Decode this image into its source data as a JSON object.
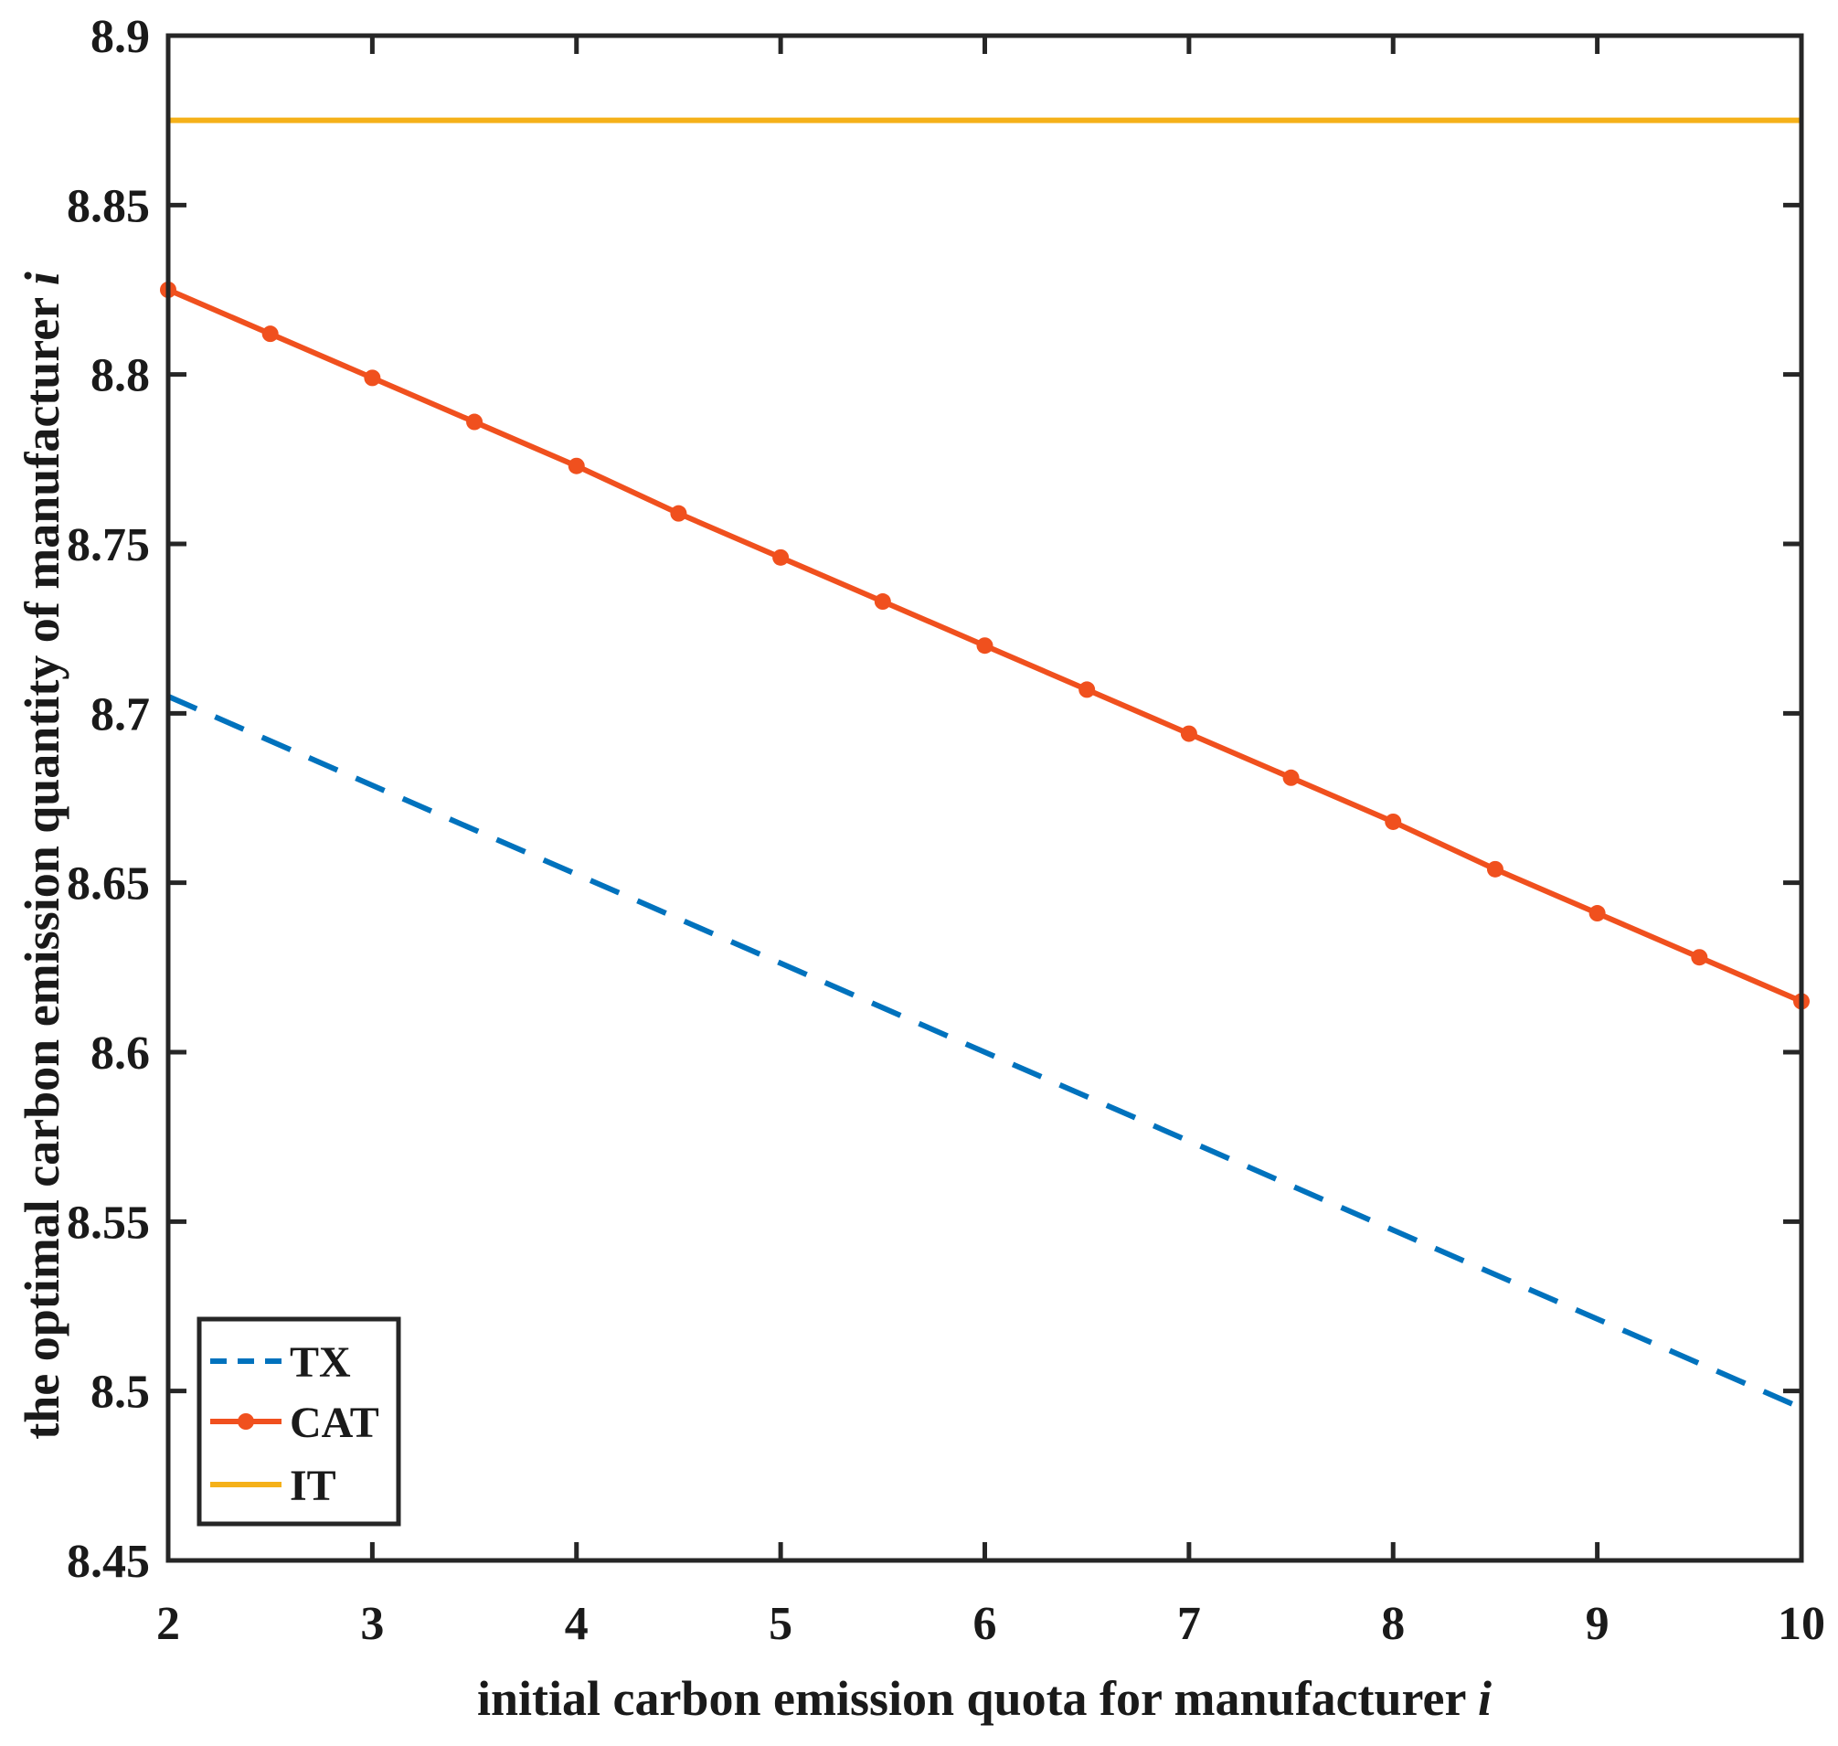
{
  "chart_data": {
    "type": "line",
    "title": "",
    "xlabel": "initial carbon emission quota for manufacturer",
    "xlabel_var": "i",
    "ylabel": "the optimal carbon emission quantity of manufacturer",
    "ylabel_var": "i",
    "xlim": [
      2,
      10
    ],
    "ylim": [
      8.45,
      8.9
    ],
    "xticks": [
      2,
      3,
      4,
      5,
      6,
      7,
      8,
      9,
      10
    ],
    "yticks": [
      8.45,
      8.5,
      8.55,
      8.6,
      8.65,
      8.7,
      8.75,
      8.8,
      8.85,
      8.9
    ],
    "ytick_labels": [
      "8.45",
      "8.5",
      "8.55",
      "8.6",
      "8.65",
      "8.7",
      "8.75",
      "8.8",
      "8.85",
      "8.9"
    ],
    "grid": false,
    "legend_position": "bottom-left",
    "series": [
      {
        "name": "TX",
        "style": "dashed",
        "color": "#0072bd",
        "x": [
          2,
          10
        ],
        "y": [
          8.705,
          8.495
        ]
      },
      {
        "name": "CAT",
        "style": "solid-marker",
        "color": "#f0501e",
        "x": [
          2,
          2.5,
          3,
          3.5,
          4,
          4.5,
          5,
          5.5,
          6,
          6.5,
          7,
          7.5,
          8,
          8.5,
          9,
          9.5,
          10
        ],
        "y": [
          8.825,
          8.812,
          8.799,
          8.786,
          8.773,
          8.759,
          8.746,
          8.733,
          8.72,
          8.707,
          8.694,
          8.681,
          8.668,
          8.654,
          8.641,
          8.628,
          8.615
        ]
      },
      {
        "name": "IT",
        "style": "solid",
        "color": "#f5b119",
        "x": [
          2,
          10
        ],
        "y": [
          8.875,
          8.875
        ]
      }
    ]
  }
}
